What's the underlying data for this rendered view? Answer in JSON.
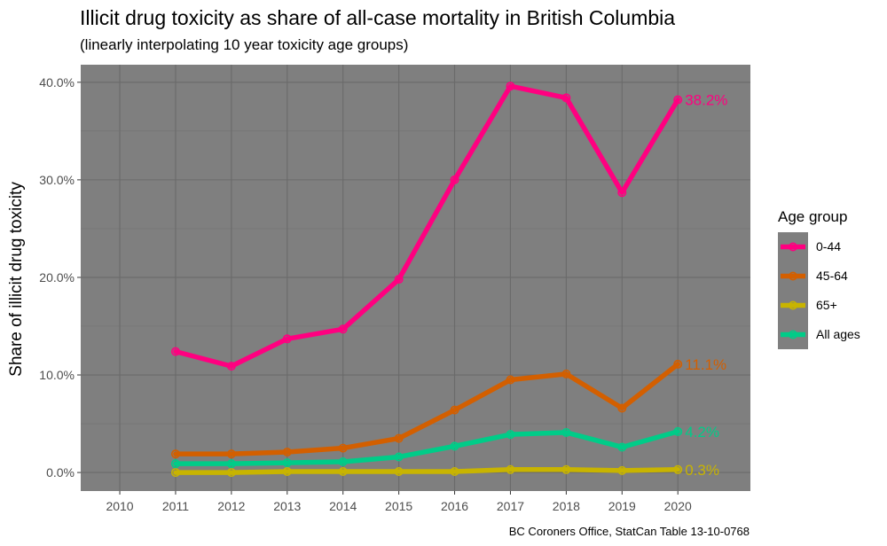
{
  "chart_data": {
    "type": "line",
    "title": "Illicit drug toxicity as share of all-case mortality in British Columbia",
    "subtitle": "(linearly interpolating 10 year toxicity age groups)",
    "xlabel": "",
    "ylabel": "Share of illicit drug toxicity",
    "caption": "BC Coroners Office, StatCan Table 13-10-0768",
    "x": [
      2010,
      2011,
      2012,
      2013,
      2014,
      2015,
      2016,
      2017,
      2018,
      2019,
      2020
    ],
    "x_tick_labels": [
      "2010",
      "2011",
      "2012",
      "2013",
      "2014",
      "2015",
      "2016",
      "2017",
      "2018",
      "2019",
      "2020"
    ],
    "y_ticks": [
      0,
      10,
      20,
      30,
      40
    ],
    "y_tick_labels": [
      "0.0%",
      "10.0%",
      "20.0%",
      "30.0%",
      "40.0%"
    ],
    "xlim": [
      2009.3,
      2021.3
    ],
    "ylim": [
      -1.9,
      41.8
    ],
    "grid": true,
    "panel_background": "#7f7f7f",
    "legend": {
      "title": "Age group",
      "position": "right"
    },
    "series": [
      {
        "name": "0-44",
        "color": "#ff0080",
        "x": [
          2011,
          2012,
          2013,
          2014,
          2015,
          2016,
          2017,
          2018,
          2019,
          2020
        ],
        "values": [
          12.4,
          10.9,
          13.7,
          14.7,
          19.8,
          30.0,
          39.6,
          38.4,
          28.7,
          38.2
        ],
        "end_label": "38.2%"
      },
      {
        "name": "45-64",
        "color": "#d35f00",
        "x": [
          2011,
          2012,
          2013,
          2014,
          2015,
          2016,
          2017,
          2018,
          2019,
          2020
        ],
        "values": [
          1.9,
          1.9,
          2.1,
          2.5,
          3.5,
          6.4,
          9.5,
          10.1,
          6.6,
          11.1
        ],
        "end_label": "11.1%"
      },
      {
        "name": "65+",
        "color": "#c8b400",
        "x": [
          2011,
          2012,
          2013,
          2014,
          2015,
          2016,
          2017,
          2018,
          2019,
          2020
        ],
        "values": [
          0.0,
          0.0,
          0.1,
          0.1,
          0.1,
          0.1,
          0.3,
          0.3,
          0.2,
          0.3
        ],
        "end_label": "0.3%"
      },
      {
        "name": "All ages",
        "color": "#00cc88",
        "x": [
          2011,
          2012,
          2013,
          2014,
          2015,
          2016,
          2017,
          2018,
          2019,
          2020
        ],
        "values": [
          0.9,
          0.9,
          1.0,
          1.1,
          1.6,
          2.7,
          3.9,
          4.1,
          2.6,
          4.2
        ],
        "end_label": "4.2%"
      }
    ]
  }
}
